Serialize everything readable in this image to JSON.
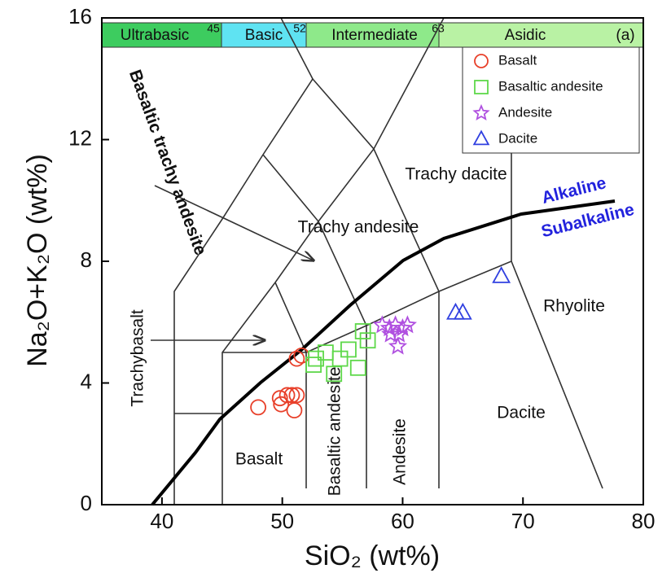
{
  "chart_data": {
    "type": "scatter",
    "x_label": "SiO₂ (wt%)",
    "y_label": "Na₂O+K₂O (wt%)",
    "xlim": [
      35,
      80
    ],
    "xticks": [
      40,
      50,
      60,
      70,
      80
    ],
    "ylim": [
      0,
      16
    ],
    "yticks": [
      0,
      4,
      8,
      12,
      16
    ],
    "legend_position": "upper right",
    "band_labels": [
      "Ultrabasic",
      45,
      "Basic",
      52,
      "Intermediate",
      63,
      "Asidic"
    ],
    "panel_label": "(a)",
    "annotations": [
      "Trachybasalt",
      "Basaltic trachy andesite",
      "Trachy andesite",
      "Trachy dacite",
      "Basalt",
      "Basaltic andesite",
      "Andesite",
      "Dacite",
      "Rhyolite",
      "Alkaline",
      "Subalkaline"
    ],
    "series": [
      {
        "name": "Basalt",
        "color": "#e8402a",
        "marker": "circle",
        "x": [
          48.0,
          49.8,
          50.4,
          50.8,
          51.2,
          49.9,
          51.0,
          51.6,
          51.2
        ],
        "y": [
          3.2,
          3.5,
          3.6,
          3.6,
          3.6,
          3.3,
          3.1,
          4.9,
          4.8
        ]
      },
      {
        "name": "Basaltic andesite",
        "color": "#5ed84a",
        "marker": "square",
        "x": [
          52.8,
          53.6,
          54.3,
          54.8,
          55.5,
          56.3,
          56.7,
          57.1,
          52.6
        ],
        "y": [
          4.8,
          5.0,
          4.3,
          4.8,
          5.1,
          4.5,
          5.7,
          5.4,
          4.6
        ]
      },
      {
        "name": "Andesite",
        "color": "#b050e0",
        "marker": "star",
        "x": [
          58.3,
          58.9,
          59.4,
          59.7,
          60.0,
          59.6,
          59.0,
          60.4
        ],
        "y": [
          5.9,
          5.8,
          5.9,
          5.6,
          5.8,
          5.2,
          5.6,
          5.9
        ]
      },
      {
        "name": "Dacite",
        "color": "#3040e0",
        "marker": "triangle",
        "x": [
          64.4,
          65.0,
          68.2
        ],
        "y": [
          6.3,
          6.3,
          7.5
        ]
      }
    ]
  }
}
